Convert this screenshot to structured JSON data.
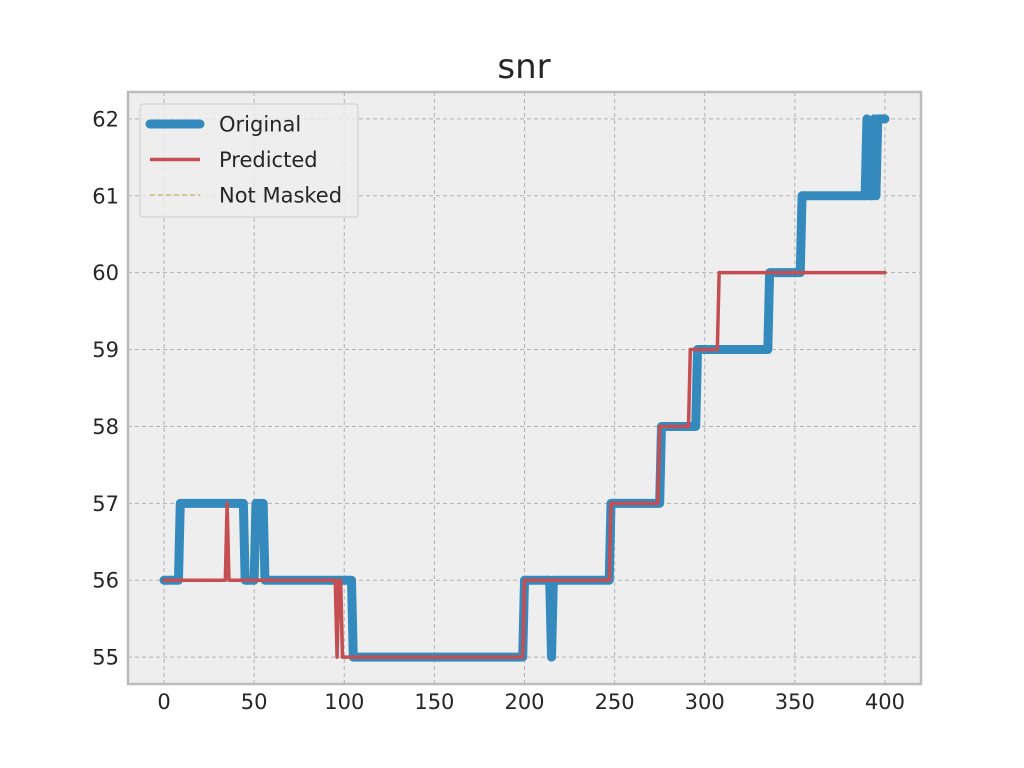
{
  "chart_data": {
    "type": "line",
    "title": "snr",
    "xlabel": "",
    "ylabel": "",
    "xlim": [
      -20,
      420
    ],
    "ylim": [
      54.65,
      62.35
    ],
    "x_ticks": [
      0,
      50,
      100,
      150,
      200,
      250,
      300,
      350,
      400
    ],
    "y_ticks": [
      55,
      56,
      57,
      58,
      59,
      60,
      61,
      62
    ],
    "grid": true,
    "legend_position": "top-left",
    "series": [
      {
        "name": "Original",
        "color": "#348abd",
        "style": "solid-thick",
        "points": [
          [
            0,
            56
          ],
          [
            8,
            56
          ],
          [
            9,
            57
          ],
          [
            44,
            57
          ],
          [
            45,
            56
          ],
          [
            50,
            56
          ],
          [
            51,
            57
          ],
          [
            55,
            57
          ],
          [
            56,
            56
          ],
          [
            104,
            56
          ],
          [
            105,
            55
          ],
          [
            199,
            55
          ],
          [
            200,
            56
          ],
          [
            214,
            56
          ],
          [
            215,
            55
          ],
          [
            216,
            56
          ],
          [
            247,
            56
          ],
          [
            248,
            57
          ],
          [
            275,
            57
          ],
          [
            276,
            58
          ],
          [
            295,
            58
          ],
          [
            296,
            59
          ],
          [
            335,
            59
          ],
          [
            336,
            60
          ],
          [
            353,
            60
          ],
          [
            354,
            61
          ],
          [
            389,
            61
          ],
          [
            390,
            62
          ],
          [
            391,
            61
          ],
          [
            393,
            61
          ],
          [
            394,
            62
          ],
          [
            395,
            61
          ],
          [
            396,
            62
          ],
          [
            400,
            62
          ]
        ]
      },
      {
        "name": "Predicted",
        "color": "#c44e52",
        "style": "solid",
        "points": [
          [
            0,
            56
          ],
          [
            34,
            56
          ],
          [
            35,
            57
          ],
          [
            36,
            56
          ],
          [
            95,
            56
          ],
          [
            96,
            55
          ],
          [
            97,
            56
          ],
          [
            98,
            56
          ],
          [
            99,
            55
          ],
          [
            199,
            55
          ],
          [
            200,
            56
          ],
          [
            247,
            56
          ],
          [
            248,
            57
          ],
          [
            274,
            57
          ],
          [
            275,
            58
          ],
          [
            291,
            58
          ],
          [
            292,
            59
          ],
          [
            307,
            59
          ],
          [
            308,
            60
          ],
          [
            400,
            60
          ]
        ]
      },
      {
        "name": "Not Masked",
        "color": "#ccb974",
        "style": "dashed",
        "points": []
      }
    ]
  }
}
